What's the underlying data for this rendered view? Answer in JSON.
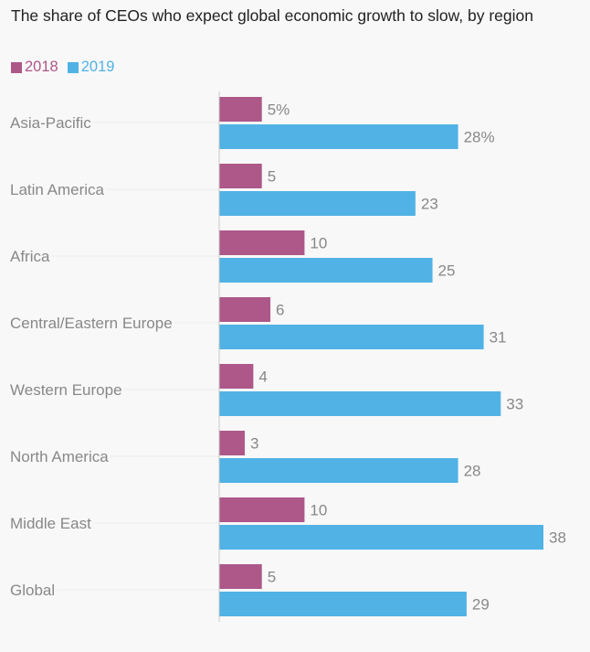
{
  "chart_data": {
    "type": "bar",
    "orientation": "horizontal",
    "title": "The share of CEOs who expect global economic growth to slow, by region",
    "categories": [
      "Asia-Pacific",
      "Latin America",
      "Africa",
      "Central/Eastern Europe",
      "Western Europe",
      "North America",
      "Middle East",
      "Global"
    ],
    "series": [
      {
        "name": "2018",
        "color": "#ad5889",
        "values": [
          5,
          5,
          10,
          6,
          4,
          3,
          10,
          5
        ]
      },
      {
        "name": "2019",
        "color": "#51b2e5",
        "values": [
          28,
          23,
          25,
          31,
          33,
          28,
          38,
          29
        ]
      }
    ],
    "value_suffix_first_row": "%",
    "xlabel": "",
    "ylabel": "",
    "xlim": [
      0,
      38
    ],
    "grid": false,
    "legend": "top-left"
  }
}
